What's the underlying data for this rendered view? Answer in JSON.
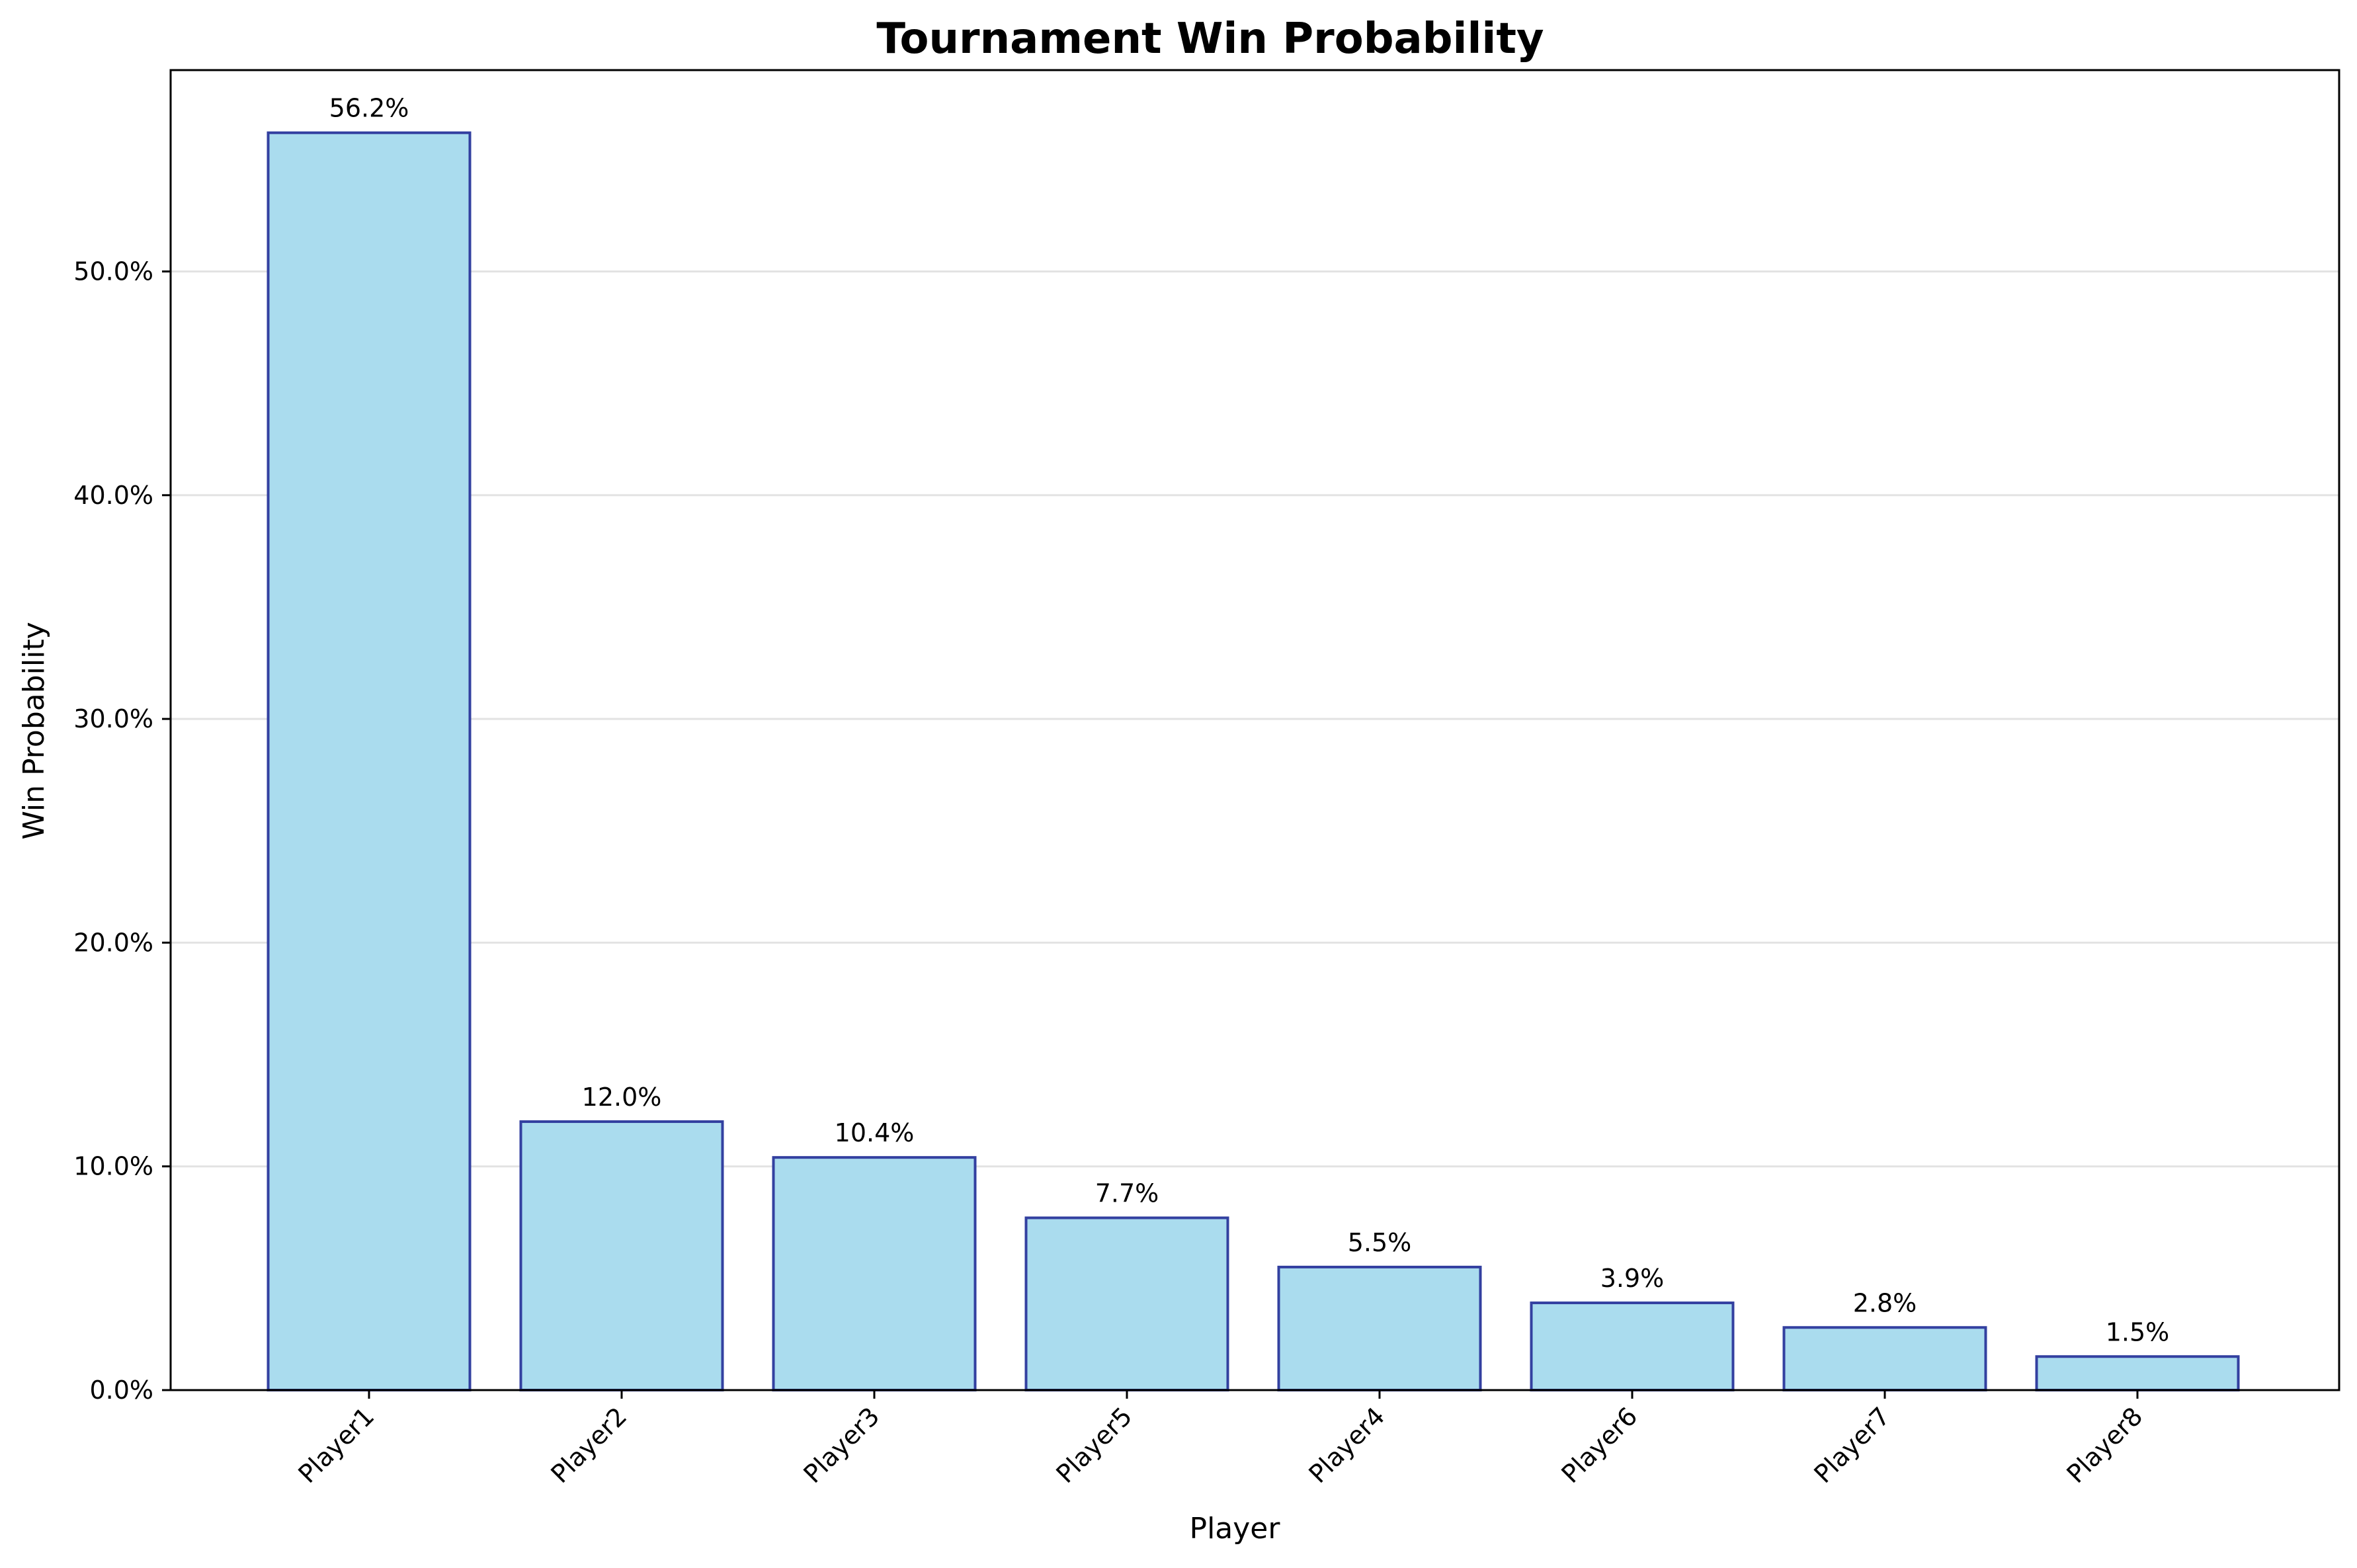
{
  "chart_data": {
    "type": "bar",
    "title": "Tournament Win Probability",
    "xlabel": "Player",
    "ylabel": "Win Probability",
    "categories": [
      "Player1",
      "Player2",
      "Player3",
      "Player5",
      "Player4",
      "Player6",
      "Player7",
      "Player8"
    ],
    "values": [
      56.2,
      12.0,
      10.4,
      7.7,
      5.5,
      3.9,
      2.8,
      1.5
    ],
    "value_labels": [
      "56.2%",
      "12.0%",
      "10.4%",
      "7.7%",
      "5.5%",
      "3.9%",
      "2.8%",
      "1.5%"
    ],
    "y_unit": "percent",
    "ylim": [
      0,
      59
    ],
    "y_ticks": [
      0,
      10,
      20,
      30,
      40,
      50
    ],
    "y_tick_labels": [
      "0.0%",
      "10.0%",
      "20.0%",
      "30.0%",
      "40.0%",
      "50.0%"
    ],
    "grid": "y-major",
    "legend": "none",
    "colors": {
      "bar_fill": "#aadcee",
      "bar_edge": "#3340a0",
      "grid": "#e3e3e3",
      "axis": "#000000"
    }
  }
}
